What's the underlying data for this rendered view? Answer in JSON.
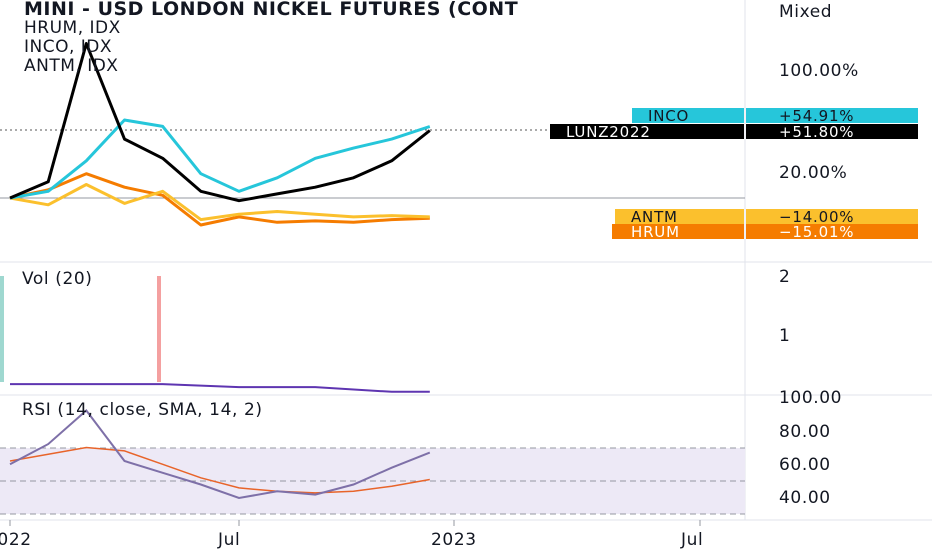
{
  "legend": {
    "title": "MINI - USD LONDON NICKEL FUTURES (CONT",
    "line2": "HRUM, IDX",
    "line3": "INCO, IDX",
    "line4": "ANTM, IDX"
  },
  "price_scale": {
    "mode": "Mixed",
    "ticks": [
      "100.00%",
      "20.00%"
    ]
  },
  "tags": [
    {
      "symbol": "INCO",
      "value": "+54.91%",
      "bg": "#26c6da",
      "fg": "#131722"
    },
    {
      "symbol": "LUNZ2022",
      "value": "+51.80%",
      "bg": "#000000",
      "fg": "#ffffff"
    },
    {
      "symbol": "ANTM",
      "value": "−14.00%",
      "bg": "#fbc02d",
      "fg": "#131722"
    },
    {
      "symbol": "HRUM",
      "value": "−15.01%",
      "bg": "#f57c00",
      "fg": "#ffffff"
    }
  ],
  "volume_pane": {
    "label": "Vol (20)",
    "ticks": [
      "2",
      "1"
    ]
  },
  "rsi_pane": {
    "label": "RSI (14, close, SMA, 14, 2)",
    "ticks": [
      "100.00",
      "80.00",
      "60.00",
      "40.00"
    ]
  },
  "x_axis": {
    "labels": [
      "2022",
      "Jul",
      "2023",
      "Jul"
    ]
  },
  "colors": {
    "lunz2022": "#000000",
    "inco": "#26c6da",
    "antm": "#fbc02d",
    "hrum": "#f57c00",
    "volume_line": "#5e35b1",
    "rsi": "#7e70a8",
    "rsi_ma": "#e8642a",
    "rsi_band": "#ede9f6"
  },
  "chart_data": [
    {
      "type": "line",
      "title": "MINI - USD LONDON NICKEL FUTURES (CONT",
      "y_unit": "%",
      "x": [
        "2022-01",
        "2022-02",
        "2022-03",
        "2022-04",
        "2022-05",
        "2022-06",
        "2022-07",
        "2022-08",
        "2022-09",
        "2022-10",
        "2022-11",
        "2022-12"
      ],
      "series": [
        {
          "name": "LUNZ2022",
          "values": [
            0,
            12,
            120,
            45,
            30,
            5,
            -2,
            3,
            8,
            15,
            28,
            51.8
          ]
        },
        {
          "name": "INCO",
          "values": [
            0,
            5,
            28,
            60,
            55,
            18,
            5,
            15,
            30,
            38,
            45,
            54.91
          ]
        },
        {
          "name": "ANTM",
          "values": [
            0,
            -5,
            10,
            -4,
            5,
            -16,
            -12,
            -10,
            -12,
            -14,
            -13,
            -14.0
          ]
        },
        {
          "name": "HRUM",
          "values": [
            0,
            6,
            18,
            8,
            2,
            -20,
            -14,
            -18,
            -17,
            -18,
            -16,
            -15.01
          ]
        }
      ]
    },
    {
      "type": "line",
      "title": "Vol (20)",
      "ylim": [
        0,
        2
      ],
      "x": [
        "2022-01",
        "2022-03",
        "2022-05",
        "2022-07",
        "2022-09",
        "2022-11",
        "2022-12"
      ],
      "series": [
        {
          "name": "Vol (20)",
          "values": [
            0.15,
            0.15,
            0.15,
            0.1,
            0.1,
            0.02,
            0.02
          ]
        }
      ]
    },
    {
      "type": "line",
      "title": "RSI (14, close, SMA, 14, 2)",
      "ylim": [
        30,
        100
      ],
      "x": [
        "2022-01",
        "2022-02",
        "2022-03",
        "2022-04",
        "2022-05",
        "2022-06",
        "2022-07",
        "2022-08",
        "2022-09",
        "2022-10",
        "2022-11",
        "2022-12"
      ],
      "series": [
        {
          "values": [
            60,
            72,
            92,
            62,
            55,
            48,
            40,
            44,
            42,
            48,
            58,
            67
          ]
        },
        {
          "values": [
            62,
            66,
            70,
            68,
            60,
            52,
            46,
            44,
            43,
            44,
            47,
            51
          ]
        }
      ]
    }
  ]
}
